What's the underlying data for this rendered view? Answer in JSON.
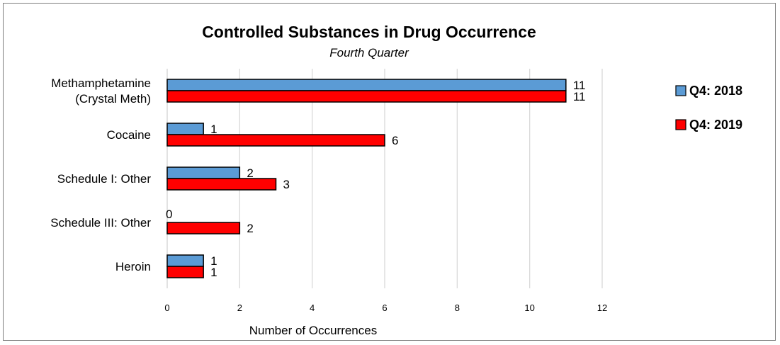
{
  "chart_data": {
    "type": "bar",
    "orientation": "horizontal",
    "title": "Controlled Substances in Drug Occurrence",
    "subtitle": "Fourth Quarter",
    "categories": [
      [
        "Methamphetamine",
        "(Crystal Meth)"
      ],
      [
        "Cocaine"
      ],
      [
        "Schedule I: Other"
      ],
      [
        "Schedule III: Other"
      ],
      [
        "Heroin"
      ]
    ],
    "series": [
      {
        "name": "Q4: 2018",
        "color": "#5b9bd5",
        "values": [
          11,
          1,
          2,
          0,
          1
        ]
      },
      {
        "name": "Q4: 2019",
        "color": "#ff0000",
        "values": [
          11,
          6,
          3,
          2,
          1
        ]
      }
    ],
    "xlabel": "Number of Occurrences",
    "ylabel": "",
    "xlim": [
      0,
      12
    ],
    "xticks": [
      0,
      2,
      4,
      6,
      8,
      10,
      12
    ],
    "grid": true,
    "data_labels": true,
    "legend_position": "right"
  }
}
